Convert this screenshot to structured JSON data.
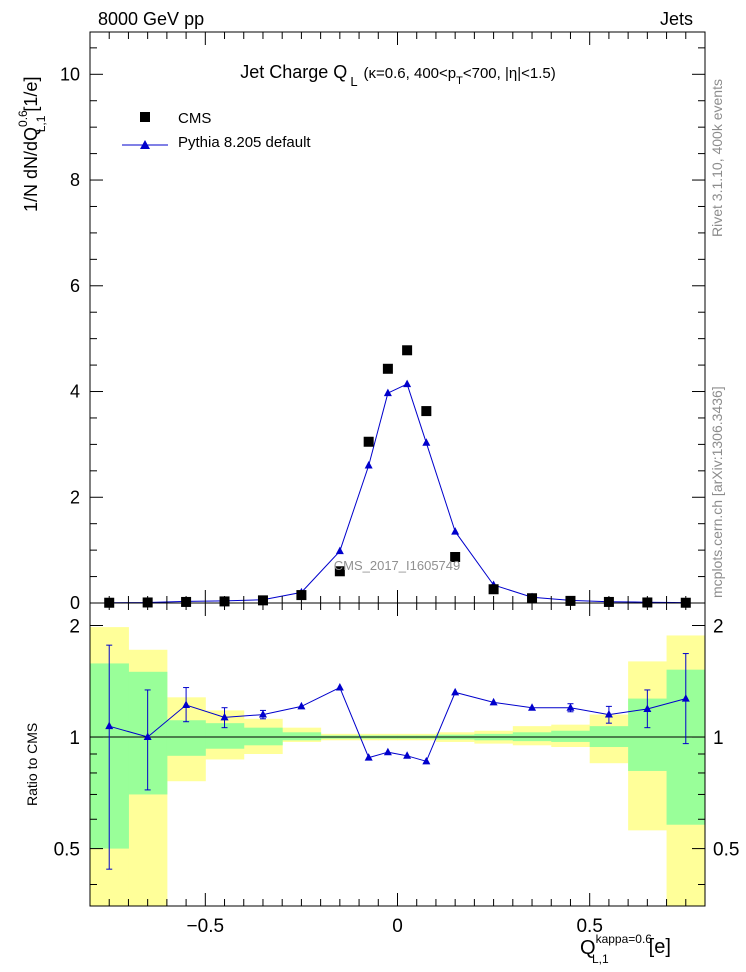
{
  "header": {
    "energy_label": "8000 GeV pp",
    "process_label": "Jets"
  },
  "side_labels": {
    "rivet": "Rivet 3.1.10,  400k events",
    "mcplots": "mcplots.cern.ch [arXiv:1306.3436]"
  },
  "watermark": "CMS_2017_I1605749",
  "chart_data": [
    {
      "type": "scatter",
      "title_main": "Jet Charge Q",
      "title_sub": "L",
      "title_params": "(κ=0.6, 400<p",
      "title_pt_sub": "T",
      "title_tail": "<700, |η|<1.5)",
      "ylabel_main": "1/N dN/dQ",
      "ylabel_sup": "0.6",
      "ylabel_sub": "L,1",
      "ylabel_unit": "[1/e]",
      "xlim": [
        -0.8,
        0.8
      ],
      "ylim": [
        0,
        10.8
      ],
      "yticks": [
        0,
        2,
        4,
        6,
        8,
        10
      ],
      "legend": {
        "data_label": "CMS",
        "mc_label": "Pythia 8.205 default"
      },
      "x": [
        -0.75,
        -0.65,
        -0.55,
        -0.45,
        -0.35,
        -0.25,
        -0.15,
        -0.075,
        -0.025,
        0.025,
        0.075,
        0.15,
        0.25,
        0.35,
        0.45,
        0.55,
        0.65,
        0.75
      ],
      "series": [
        {
          "name": "CMS",
          "values": [
            0.005,
            0.01,
            0.02,
            0.03,
            0.05,
            0.15,
            0.6,
            3.05,
            4.43,
            4.78,
            3.63,
            0.87,
            0.26,
            0.09,
            0.04,
            0.02,
            0.01,
            0.005
          ]
        },
        {
          "name": "Pythia 8.205 default",
          "values": [
            0.006,
            0.01,
            0.03,
            0.04,
            0.06,
            0.2,
            0.98,
            2.6,
            3.97,
            4.14,
            3.03,
            1.35,
            0.34,
            0.11,
            0.05,
            0.025,
            0.015,
            0.008
          ]
        }
      ]
    },
    {
      "type": "line",
      "ylabel": "Ratio to CMS",
      "xlabel_main": "Q",
      "xlabel_sup": "kappa=0.6",
      "xlabel_sub": "L,1",
      "xlabel_unit": "[e]",
      "xlim": [
        -0.8,
        0.8
      ],
      "ylim": [
        0.35,
        2.3
      ],
      "xticks": [
        -0.5,
        0,
        0.5
      ],
      "xtick_labels": [
        "−0.5",
        "0",
        "0.5"
      ],
      "yticks": [
        0.5,
        1,
        2
      ],
      "ytick_labels": [
        "0.5",
        "1",
        "2"
      ],
      "bin_edges": [
        -0.8,
        -0.7,
        -0.6,
        -0.5,
        -0.4,
        -0.3,
        -0.2,
        -0.1,
        -0.05,
        0,
        0.05,
        0.1,
        0.2,
        0.3,
        0.4,
        0.5,
        0.6,
        0.7,
        0.8
      ],
      "band_yellow": [
        [
          0.35,
          1.98
        ],
        [
          0.35,
          1.72
        ],
        [
          0.76,
          1.28
        ],
        [
          0.87,
          1.18
        ],
        [
          0.9,
          1.12
        ],
        [
          0.97,
          1.06
        ],
        [
          0.98,
          1.02
        ],
        [
          0.98,
          1.02
        ],
        [
          0.98,
          1.02
        ],
        [
          0.98,
          1.02
        ],
        [
          0.98,
          1.02
        ],
        [
          0.97,
          1.03
        ],
        [
          0.96,
          1.04
        ],
        [
          0.95,
          1.07
        ],
        [
          0.94,
          1.08
        ],
        [
          0.85,
          1.15
        ],
        [
          0.56,
          1.6
        ],
        [
          0.35,
          1.88
        ],
        [
          0.35,
          1.88
        ]
      ],
      "band_green": [
        [
          0.5,
          1.58
        ],
        [
          0.7,
          1.5
        ],
        [
          0.89,
          1.11
        ],
        [
          0.93,
          1.09
        ],
        [
          0.95,
          1.06
        ],
        [
          0.98,
          1.03
        ],
        [
          0.99,
          1.01
        ],
        [
          0.99,
          1.01
        ],
        [
          0.99,
          1.01
        ],
        [
          0.99,
          1.01
        ],
        [
          0.99,
          1.01
        ],
        [
          0.985,
          1.015
        ],
        [
          0.98,
          1.02
        ],
        [
          0.975,
          1.03
        ],
        [
          0.97,
          1.04
        ],
        [
          0.94,
          1.07
        ],
        [
          0.81,
          1.27
        ],
        [
          0.58,
          1.52
        ],
        [
          0.58,
          1.52
        ]
      ],
      "x": [
        -0.75,
        -0.65,
        -0.55,
        -0.45,
        -0.35,
        -0.25,
        -0.15,
        -0.075,
        -0.025,
        0.025,
        0.075,
        0.15,
        0.25,
        0.35,
        0.45,
        0.55,
        0.65,
        0.75
      ],
      "series": [
        {
          "name": "Pythia 8.205 default / CMS",
          "values": [
            1.07,
            1.0,
            1.22,
            1.13,
            1.15,
            1.21,
            1.36,
            0.88,
            0.91,
            0.89,
            0.86,
            1.32,
            1.24,
            1.2,
            1.2,
            1.15,
            1.19,
            1.27
          ],
          "err_low": [
            0.63,
            0.28,
            0.12,
            0.07,
            0.03,
            0.01,
            0.01,
            0.01,
            0.01,
            0.01,
            0.01,
            0.01,
            0.01,
            0.01,
            0.03,
            0.06,
            0.13,
            0.31
          ],
          "err_high": [
            0.7,
            0.34,
            0.14,
            0.07,
            0.03,
            0.01,
            0.01,
            0.01,
            0.01,
            0.01,
            0.01,
            0.01,
            0.01,
            0.01,
            0.03,
            0.06,
            0.15,
            0.41
          ]
        }
      ]
    }
  ]
}
